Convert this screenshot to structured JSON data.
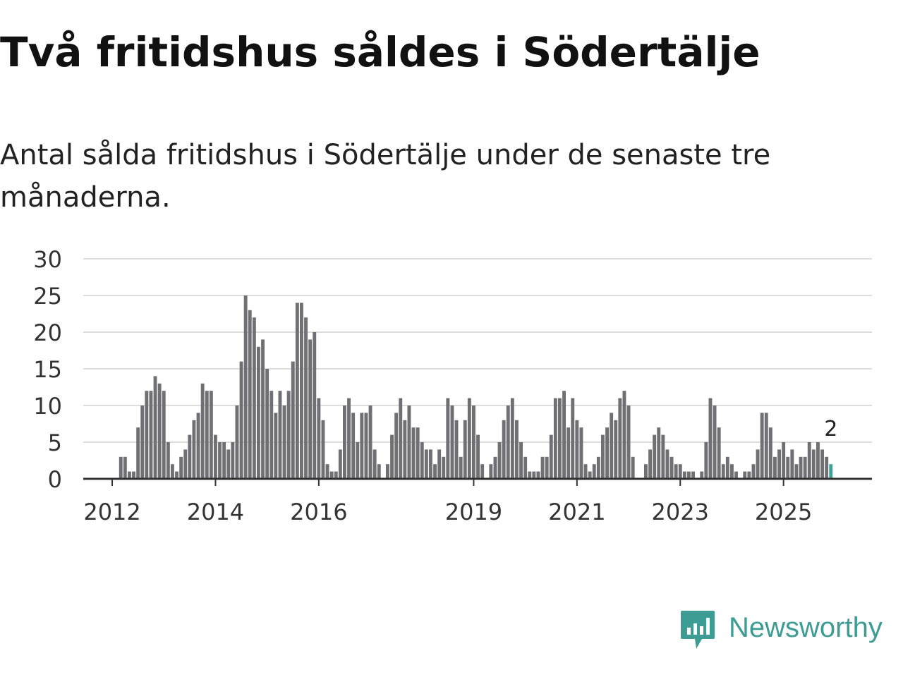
{
  "title": "Två fritidshus såldes i Södertälje",
  "subtitle": "Antal sålda fritidshus i Södertälje under de senaste tre månaderna.",
  "colors": {
    "bar": "#6f6f74",
    "highlight": "#3aa39a",
    "grid": "#dddddd",
    "axis": "#333333",
    "brand": "#3d9c93"
  },
  "chart_data": {
    "type": "bar",
    "title": "",
    "xlabel": "",
    "ylabel": "",
    "ylim": [
      0,
      30
    ],
    "yticks": [
      0,
      5,
      10,
      15,
      20,
      25,
      30
    ],
    "x_start": "2011-07",
    "xtick_labels": [
      {
        "label": "2012",
        "month": "2012-01"
      },
      {
        "label": "2014",
        "month": "2014-01"
      },
      {
        "label": "2016",
        "month": "2016-01"
      },
      {
        "label": "2019",
        "month": "2019-01"
      },
      {
        "label": "2021",
        "month": "2021-01"
      },
      {
        "label": "2023",
        "month": "2023-01"
      },
      {
        "label": "2025",
        "month": "2025-01"
      }
    ],
    "values": [
      0,
      0,
      0,
      0,
      0,
      0,
      0,
      0,
      3,
      3,
      1,
      1,
      7,
      10,
      12,
      12,
      14,
      13,
      12,
      5,
      2,
      1,
      3,
      4,
      6,
      8,
      9,
      13,
      12,
      12,
      6,
      5,
      5,
      4,
      5,
      10,
      16,
      25,
      23,
      22,
      18,
      19,
      15,
      12,
      9,
      12,
      10,
      12,
      16,
      24,
      24,
      22,
      19,
      20,
      11,
      8,
      2,
      1,
      1,
      4,
      10,
      11,
      9,
      5,
      9,
      9,
      10,
      4,
      2,
      0,
      2,
      6,
      9,
      11,
      8,
      10,
      7,
      7,
      5,
      4,
      4,
      2,
      4,
      3,
      11,
      10,
      8,
      3,
      8,
      11,
      10,
      6,
      2,
      0,
      2,
      3,
      5,
      8,
      10,
      11,
      8,
      5,
      3,
      1,
      1,
      1,
      3,
      3,
      6,
      11,
      11,
      12,
      7,
      11,
      8,
      7,
      2,
      1,
      2,
      3,
      6,
      7,
      9,
      8,
      11,
      12,
      10,
      3,
      0,
      0,
      2,
      4,
      6,
      7,
      6,
      4,
      3,
      2,
      2,
      1,
      1,
      1,
      0,
      1,
      5,
      11,
      10,
      7,
      2,
      3,
      2,
      1,
      0,
      1,
      1,
      2,
      4,
      9,
      9,
      7,
      3,
      4,
      5,
      3,
      4,
      2,
      3,
      3,
      5,
      4,
      5,
      4,
      3,
      2
    ],
    "highlight_label": "2"
  },
  "brand": {
    "name": "Newsworthy",
    "icon": "newsworthy-logo-icon"
  }
}
